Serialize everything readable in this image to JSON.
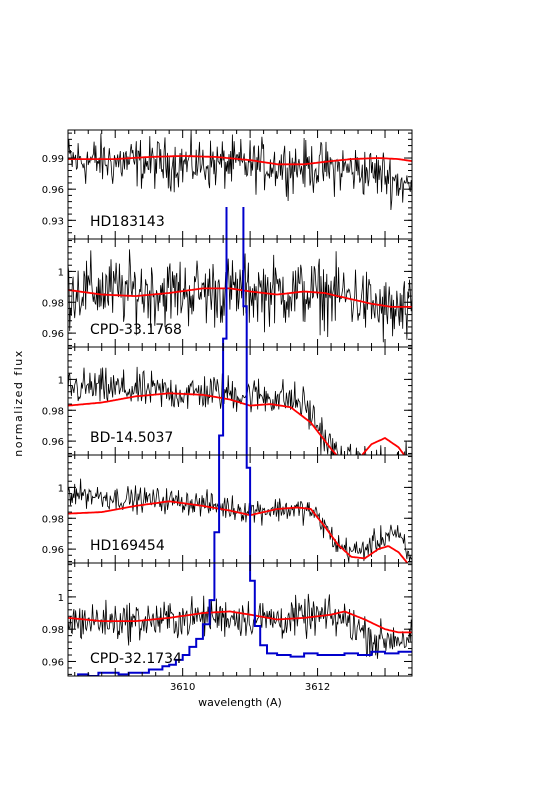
{
  "chart_data": {
    "type": "line",
    "xlabel": "wavelength (A)",
    "ylabel": "normalized flux",
    "xlim": [
      3608.3,
      3613.4
    ],
    "x_ticks": [
      "3610",
      "3612"
    ],
    "series_colors": {
      "observed": "#000000",
      "model": "#ff0000",
      "profile": "#0000cc"
    },
    "panels": [
      {
        "star": "HD183143",
        "ylim": [
          0.912,
          1.017
        ],
        "y_ticks": [
          "0.99",
          "0.96",
          "0.93"
        ],
        "y_tick_values": [
          0.99,
          0.96,
          0.93
        ],
        "noise": 0.012,
        "observed_trend": [
          [
            3608.3,
            0.988
          ],
          [
            3609.5,
            0.985
          ],
          [
            3610.5,
            0.984
          ],
          [
            3611.5,
            0.983
          ],
          [
            3612.5,
            0.979
          ],
          [
            3613.0,
            0.974
          ],
          [
            3613.4,
            0.96
          ]
        ],
        "model": [
          [
            3608.3,
            0.989
          ],
          [
            3609.0,
            0.989
          ],
          [
            3609.5,
            0.991
          ],
          [
            3610.0,
            0.992
          ],
          [
            3610.5,
            0.991
          ],
          [
            3611.0,
            0.988
          ],
          [
            3611.4,
            0.984
          ],
          [
            3611.8,
            0.984
          ],
          [
            3612.2,
            0.987
          ],
          [
            3612.5,
            0.989
          ],
          [
            3612.9,
            0.99
          ],
          [
            3613.2,
            0.989
          ],
          [
            3613.4,
            0.987
          ]
        ]
      },
      {
        "star": "CPD-33.1768",
        "ylim": [
          0.951,
          1.021
        ],
        "y_ticks": [
          "1",
          "0.98",
          "0.96"
        ],
        "y_tick_values": [
          1.0,
          0.98,
          0.96
        ],
        "noise": 0.011,
        "observed_trend": [
          [
            3608.3,
            0.988
          ],
          [
            3609.5,
            0.987
          ],
          [
            3610.5,
            0.987
          ],
          [
            3611.5,
            0.987
          ],
          [
            3612.5,
            0.984
          ],
          [
            3613.0,
            0.974
          ],
          [
            3613.4,
            0.972
          ]
        ],
        "model": [
          [
            3608.3,
            0.988
          ],
          [
            3608.8,
            0.985
          ],
          [
            3609.3,
            0.984
          ],
          [
            3609.8,
            0.986
          ],
          [
            3610.3,
            0.989
          ],
          [
            3610.7,
            0.989
          ],
          [
            3611.0,
            0.987
          ],
          [
            3611.4,
            0.985
          ],
          [
            3611.8,
            0.987
          ],
          [
            3612.1,
            0.986
          ],
          [
            3612.4,
            0.983
          ],
          [
            3612.8,
            0.979
          ],
          [
            3613.1,
            0.977
          ],
          [
            3613.4,
            0.977
          ]
        ]
      },
      {
        "star": "BD-14.5037",
        "ylim": [
          0.951,
          1.021
        ],
        "y_ticks": [
          "1",
          "0.98",
          "0.96"
        ],
        "y_tick_values": [
          1.0,
          0.98,
          0.96
        ],
        "noise": 0.006,
        "observed_trend": [
          [
            3608.3,
            0.995
          ],
          [
            3609.0,
            0.994
          ],
          [
            3610.0,
            0.991
          ],
          [
            3610.5,
            0.992
          ],
          [
            3611.0,
            0.99
          ],
          [
            3611.5,
            0.988
          ],
          [
            3611.8,
            0.984
          ],
          [
            3612.0,
            0.97
          ],
          [
            3612.2,
            0.955
          ],
          [
            3612.4,
            0.945
          ]
        ],
        "model": [
          [
            3608.3,
            0.983
          ],
          [
            3608.8,
            0.985
          ],
          [
            3609.3,
            0.989
          ],
          [
            3609.8,
            0.991
          ],
          [
            3610.3,
            0.99
          ],
          [
            3610.7,
            0.987
          ],
          [
            3611.0,
            0.983
          ],
          [
            3611.3,
            0.984
          ],
          [
            3611.6,
            0.982
          ],
          [
            3611.9,
            0.972
          ],
          [
            3612.2,
            0.955
          ],
          [
            3612.4,
            0.945
          ],
          [
            3612.6,
            0.948
          ],
          [
            3612.8,
            0.958
          ],
          [
            3613.0,
            0.962
          ],
          [
            3613.2,
            0.956
          ],
          [
            3613.35,
            0.947
          ]
        ]
      },
      {
        "star": "HD169454",
        "ylim": [
          0.951,
          1.021
        ],
        "y_ticks": [
          "1",
          "0.98",
          "0.96"
        ],
        "y_tick_values": [
          1.0,
          0.98,
          0.96
        ],
        "noise": 0.004,
        "observed_trend": [
          [
            3608.3,
            0.997
          ],
          [
            3609.0,
            0.993
          ],
          [
            3610.0,
            0.991
          ],
          [
            3610.5,
            0.988
          ],
          [
            3611.0,
            0.985
          ],
          [
            3611.5,
            0.986
          ],
          [
            3611.9,
            0.985
          ],
          [
            3612.1,
            0.975
          ],
          [
            3612.3,
            0.962
          ],
          [
            3612.6,
            0.958
          ],
          [
            3612.9,
            0.965
          ],
          [
            3613.1,
            0.972
          ],
          [
            3613.25,
            0.965
          ],
          [
            3613.4,
            0.95
          ]
        ],
        "model": [
          [
            3608.3,
            0.983
          ],
          [
            3608.8,
            0.984
          ],
          [
            3609.3,
            0.988
          ],
          [
            3609.8,
            0.991
          ],
          [
            3610.3,
            0.988
          ],
          [
            3610.7,
            0.985
          ],
          [
            3611.0,
            0.982
          ],
          [
            3611.4,
            0.986
          ],
          [
            3611.7,
            0.987
          ],
          [
            3611.9,
            0.986
          ],
          [
            3612.1,
            0.975
          ],
          [
            3612.3,
            0.963
          ],
          [
            3612.5,
            0.955
          ],
          [
            3612.7,
            0.954
          ],
          [
            3612.9,
            0.96
          ],
          [
            3613.05,
            0.962
          ],
          [
            3613.2,
            0.958
          ],
          [
            3613.35,
            0.95
          ]
        ]
      },
      {
        "star": "CPD-32.1734",
        "ylim": [
          0.951,
          1.021
        ],
        "y_ticks": [
          "1",
          "0.98",
          "0.96"
        ],
        "y_tick_values": [
          1.0,
          0.98,
          0.96
        ],
        "noise": 0.006,
        "observed_trend": [
          [
            3608.3,
            0.985
          ],
          [
            3609.5,
            0.985
          ],
          [
            3610.5,
            0.988
          ],
          [
            3611.5,
            0.986
          ],
          [
            3612.0,
            0.988
          ],
          [
            3612.4,
            0.986
          ],
          [
            3612.7,
            0.978
          ],
          [
            3612.9,
            0.972
          ],
          [
            3613.1,
            0.975
          ],
          [
            3613.4,
            0.974
          ]
        ],
        "model": [
          [
            3608.3,
            0.987
          ],
          [
            3608.8,
            0.985
          ],
          [
            3609.3,
            0.985
          ],
          [
            3609.8,
            0.987
          ],
          [
            3610.3,
            0.99
          ],
          [
            3610.7,
            0.991
          ],
          [
            3611.0,
            0.989
          ],
          [
            3611.4,
            0.986
          ],
          [
            3611.8,
            0.987
          ],
          [
            3612.2,
            0.989
          ],
          [
            3612.4,
            0.991
          ],
          [
            3612.7,
            0.986
          ],
          [
            3613.0,
            0.98
          ],
          [
            3613.2,
            0.978
          ],
          [
            3613.4,
            0.978
          ]
        ]
      }
    ],
    "profile": {
      "comment_free": true,
      "steps": [
        [
          3608.3,
          0.95
        ],
        [
          3608.45,
          0.952
        ],
        [
          3608.6,
          0.951
        ],
        [
          3608.75,
          0.953
        ],
        [
          3608.9,
          0.953
        ],
        [
          3609.05,
          0.952
        ],
        [
          3609.2,
          0.953
        ],
        [
          3609.35,
          0.953
        ],
        [
          3609.5,
          0.955
        ],
        [
          3609.6,
          0.955
        ],
        [
          3609.7,
          0.957
        ],
        [
          3609.8,
          0.958
        ],
        [
          3609.9,
          0.961
        ],
        [
          3610.0,
          0.964
        ],
        [
          3610.1,
          0.969
        ],
        [
          3610.2,
          0.974
        ],
        [
          3610.3,
          0.983
        ],
        [
          3610.4,
          0.998
        ],
        [
          3610.47,
          1.04
        ],
        [
          3610.54,
          1.1
        ],
        [
          3610.6,
          1.16
        ],
        [
          3610.65,
          1.28
        ],
        [
          3610.7,
          1.37
        ],
        [
          3610.75,
          1.33
        ],
        [
          3610.8,
          1.26
        ],
        [
          3610.85,
          1.3
        ],
        [
          3610.9,
          1.18
        ],
        [
          3610.95,
          1.08
        ],
        [
          3611.0,
          1.01
        ],
        [
          3611.07,
          0.982
        ],
        [
          3611.15,
          0.97
        ],
        [
          3611.25,
          0.965
        ],
        [
          3611.4,
          0.964
        ],
        [
          3611.6,
          0.963
        ],
        [
          3611.8,
          0.965
        ],
        [
          3612.0,
          0.964
        ],
        [
          3612.2,
          0.964
        ],
        [
          3612.4,
          0.965
        ],
        [
          3612.6,
          0.964
        ],
        [
          3612.8,
          0.966
        ],
        [
          3613.0,
          0.965
        ],
        [
          3613.2,
          0.966
        ],
        [
          3613.4,
          0.966
        ]
      ],
      "scale_ylim": [
        0.951,
        1.021
      ]
    }
  }
}
